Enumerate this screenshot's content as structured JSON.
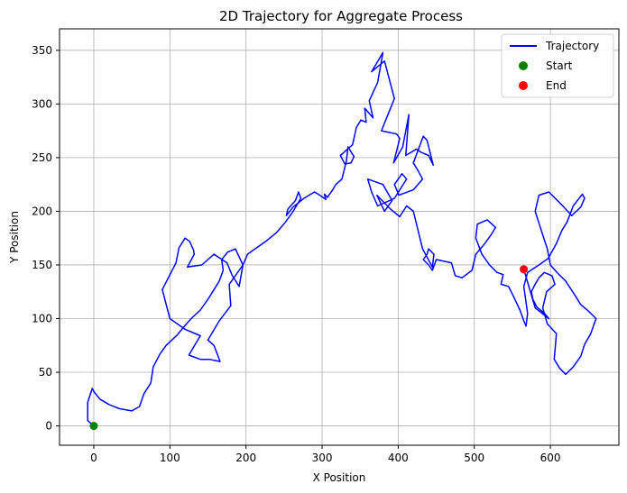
{
  "chart_data": {
    "type": "line",
    "title": "2D Trajectory for Aggregate Process",
    "xlabel": "X Position",
    "ylabel": "Y Position",
    "xlim": [
      -45,
      690
    ],
    "ylim": [
      -18,
      370
    ],
    "xticks": [
      0,
      100,
      200,
      300,
      400,
      500,
      600
    ],
    "yticks": [
      0,
      50,
      100,
      150,
      200,
      250,
      300,
      350
    ],
    "grid": true,
    "legend_position": "top-right",
    "series": [
      {
        "name": "Trajectory",
        "kind": "line",
        "color": "#0000ff",
        "x": [
          0,
          -8,
          -8,
          -2,
          0,
          8,
          20,
          34,
          50,
          60,
          66,
          75,
          78,
          87,
          95,
          110,
          118,
          128,
          140,
          150,
          158,
          165,
          170,
          168,
          176,
          186,
          196,
          178,
          180,
          165,
          150,
          158,
          166,
          152,
          140,
          125,
          130,
          140,
          120,
          100,
          90,
          108,
          112,
          120,
          126,
          131,
          132,
          123,
          142,
          150,
          158,
          175,
          182,
          191,
          196,
          202,
          214,
          226,
          240,
          252,
          262,
          272,
          269,
          265,
          255,
          253,
          262,
          276,
          290,
          297,
          305,
          303,
          307,
          314,
          318,
          326,
          332,
          334,
          342,
          338,
          330,
          324,
          332,
          340,
          345,
          351,
          358,
          356,
          367,
          362,
          373,
          380,
          365,
          382,
          395,
          378,
          398,
          402,
          394,
          406,
          414,
          410,
          424,
          430,
          440,
          446,
          438,
          433,
          420,
          426,
          432,
          420,
          401,
          395,
          405,
          411,
          395,
          373,
          365,
          360,
          380,
          392,
          382,
          372,
          390,
          402,
          411,
          420,
          432,
          445,
          447,
          440,
          438,
          433,
          440,
          445,
          450,
          470,
          475,
          484,
          497,
          502,
          514,
          522,
          528,
          517,
          504,
          502,
          510,
          520,
          530,
          538,
          535,
          545,
          552,
          560,
          565,
          568,
          570,
          565,
          570,
          585,
          597,
          608,
          615,
          622,
          630,
          642,
          645,
          640,
          628,
          615,
          598,
          585,
          580,
          590,
          596,
          600,
          610,
          620,
          632,
          640,
          650,
          660,
          658,
          653,
          645,
          640,
          630,
          620,
          612,
          605,
          608,
          596,
          590,
          595,
          606,
          602,
          592,
          585,
          580,
          575,
          577,
          582,
          592,
          598,
          580,
          565
        ],
        "y": [
          0,
          5,
          22,
          35,
          32,
          25,
          20,
          16,
          14,
          18,
          30,
          40,
          55,
          67,
          75,
          85,
          92,
          100,
          108,
          118,
          127,
          135,
          145,
          155,
          162,
          165,
          150,
          132,
          112,
          98,
          80,
          75,
          60,
          62,
          62,
          66,
          72,
          84,
          90,
          100,
          127,
          152,
          166,
          175,
          172,
          164,
          160,
          148,
          150,
          155,
          160,
          152,
          140,
          130,
          150,
          160,
          166,
          172,
          180,
          190,
          200,
          212,
          218,
          210,
          202,
          196,
          204,
          212,
          218,
          215,
          211,
          216,
          213,
          220,
          225,
          230,
          247,
          260,
          251,
          245,
          244,
          252,
          257,
          262,
          278,
          285,
          283,
          296,
          287,
          303,
          320,
          348,
          330,
          340,
          305,
          275,
          272,
          268,
          245,
          260,
          290,
          252,
          258,
          255,
          252,
          243,
          266,
          270,
          245,
          238,
          230,
          220,
          215,
          225,
          235,
          230,
          212,
          205,
          218,
          230,
          225,
          210,
          200,
          215,
          202,
          195,
          205,
          200,
          165,
          148,
          160,
          165,
          160,
          155,
          150,
          145,
          155,
          152,
          140,
          138,
          145,
          160,
          170,
          178,
          185,
          192,
          188,
          175,
          160,
          150,
          143,
          141,
          132,
          130,
          120,
          108,
          98,
          93,
          105,
          130,
          143,
          150,
          156,
          170,
          182,
          190,
          205,
          216,
          212,
          204,
          196,
          206,
          218,
          215,
          200,
          178,
          165,
          150,
          142,
          135,
          122,
          113,
          107,
          100,
          96,
          86,
          76,
          65,
          55,
          48,
          54,
          62,
          86,
          95,
          110,
          125,
          132,
          140,
          143,
          138,
          132,
          125,
          118,
          111,
          105,
          100,
          110,
          146
        ]
      },
      {
        "name": "Start",
        "kind": "marker",
        "color": "#008000",
        "x": [
          0
        ],
        "y": [
          0
        ]
      },
      {
        "name": "End",
        "kind": "marker",
        "color": "#ff0000",
        "x": [
          565
        ],
        "y": [
          146
        ]
      }
    ]
  }
}
